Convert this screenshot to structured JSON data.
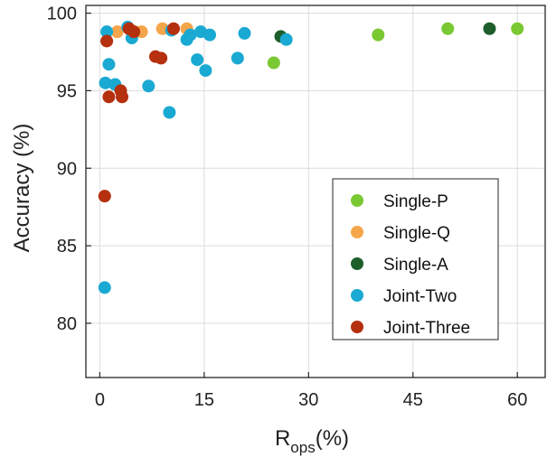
{
  "chart_data": {
    "type": "scatter",
    "xlabel": {
      "main": "R",
      "sub": "ops",
      "suffix": "(%)"
    },
    "ylabel": "Accuracy (%)",
    "xlim": [
      -2,
      64
    ],
    "ylim": [
      76.5,
      100.5
    ],
    "xticks": [
      0,
      15,
      30,
      45,
      60
    ],
    "yticks": [
      80,
      85,
      90,
      95,
      100
    ],
    "grid": true,
    "legend_position": "right, lower-middle",
    "series": [
      {
        "name": "Single-P",
        "color": "#7ac832",
        "points": [
          [
            25,
            96.8
          ],
          [
            40,
            98.6
          ],
          [
            50,
            99.0
          ],
          [
            60,
            99.0
          ]
        ]
      },
      {
        "name": "Single-Q",
        "color": "#f5a54a",
        "points": [
          [
            2.5,
            98.8
          ],
          [
            4.5,
            98.9
          ],
          [
            6.0,
            98.8
          ],
          [
            9.0,
            99.0
          ],
          [
            12.5,
            99.0
          ]
        ]
      },
      {
        "name": "Single-A",
        "color": "#1d5e2a",
        "points": [
          [
            26,
            98.5
          ],
          [
            56,
            99.0
          ]
        ]
      },
      {
        "name": "Joint-Two",
        "color": "#19a9d2",
        "points": [
          [
            0.7,
            82.3
          ],
          [
            0.8,
            95.5
          ],
          [
            1.0,
            98.8
          ],
          [
            1.3,
            96.7
          ],
          [
            2.2,
            95.4
          ],
          [
            4.0,
            99.1
          ],
          [
            4.6,
            98.4
          ],
          [
            7.0,
            95.3
          ],
          [
            10.0,
            93.6
          ],
          [
            10.3,
            98.9
          ],
          [
            12.5,
            98.3
          ],
          [
            13.0,
            98.6
          ],
          [
            14.0,
            97.0
          ],
          [
            14.5,
            98.8
          ],
          [
            15.2,
            96.3
          ],
          [
            15.8,
            98.6
          ],
          [
            19.8,
            97.1
          ],
          [
            20.8,
            98.7
          ],
          [
            26.8,
            98.3
          ]
        ]
      },
      {
        "name": "Joint-Three",
        "color": "#b5300f",
        "points": [
          [
            0.7,
            88.2
          ],
          [
            1.0,
            98.2
          ],
          [
            1.3,
            94.6
          ],
          [
            3.0,
            95.0
          ],
          [
            3.2,
            94.6
          ],
          [
            4.2,
            99.0
          ],
          [
            4.9,
            98.8
          ],
          [
            8.0,
            97.2
          ],
          [
            8.8,
            97.1
          ],
          [
            10.6,
            99.0
          ]
        ]
      }
    ]
  }
}
